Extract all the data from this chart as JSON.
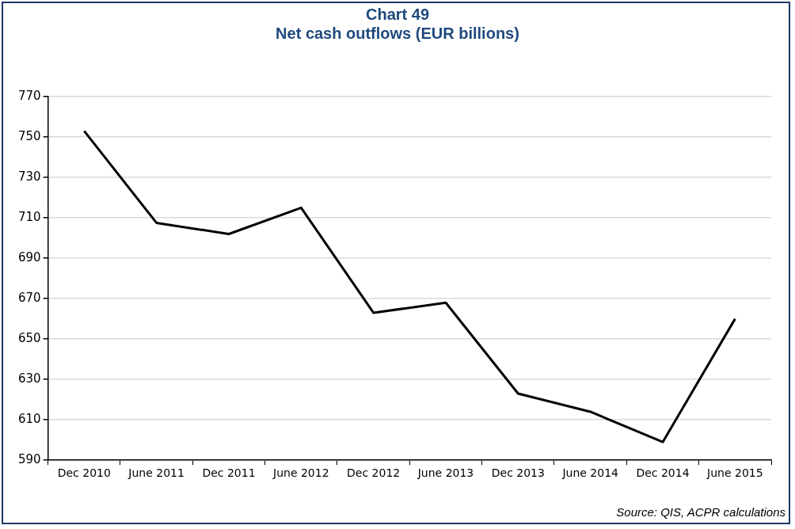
{
  "chart_data": {
    "type": "line",
    "title": "Chart 49",
    "subtitle": "Net cash outflows (EUR billions)",
    "categories": [
      "Dec 2010",
      "June 2011",
      "Dec 2011",
      "June 2012",
      "Dec 2012",
      "June 2013",
      "Dec 2013",
      "June 2014",
      "Dec 2014",
      "June 2015"
    ],
    "series": [
      {
        "color": "#000000",
        "values": [
          753,
          707.5,
          702,
          715,
          663,
          668,
          623,
          614,
          599,
          660
        ]
      }
    ],
    "ylim": [
      590,
      770
    ],
    "yticks": [
      590,
      610,
      630,
      650,
      670,
      690,
      710,
      730,
      750,
      770
    ],
    "grid": "y",
    "legend": false,
    "marker": "none",
    "line_style": "solid",
    "annotations": [
      "Source: QIS, ACPR calculations"
    ]
  }
}
